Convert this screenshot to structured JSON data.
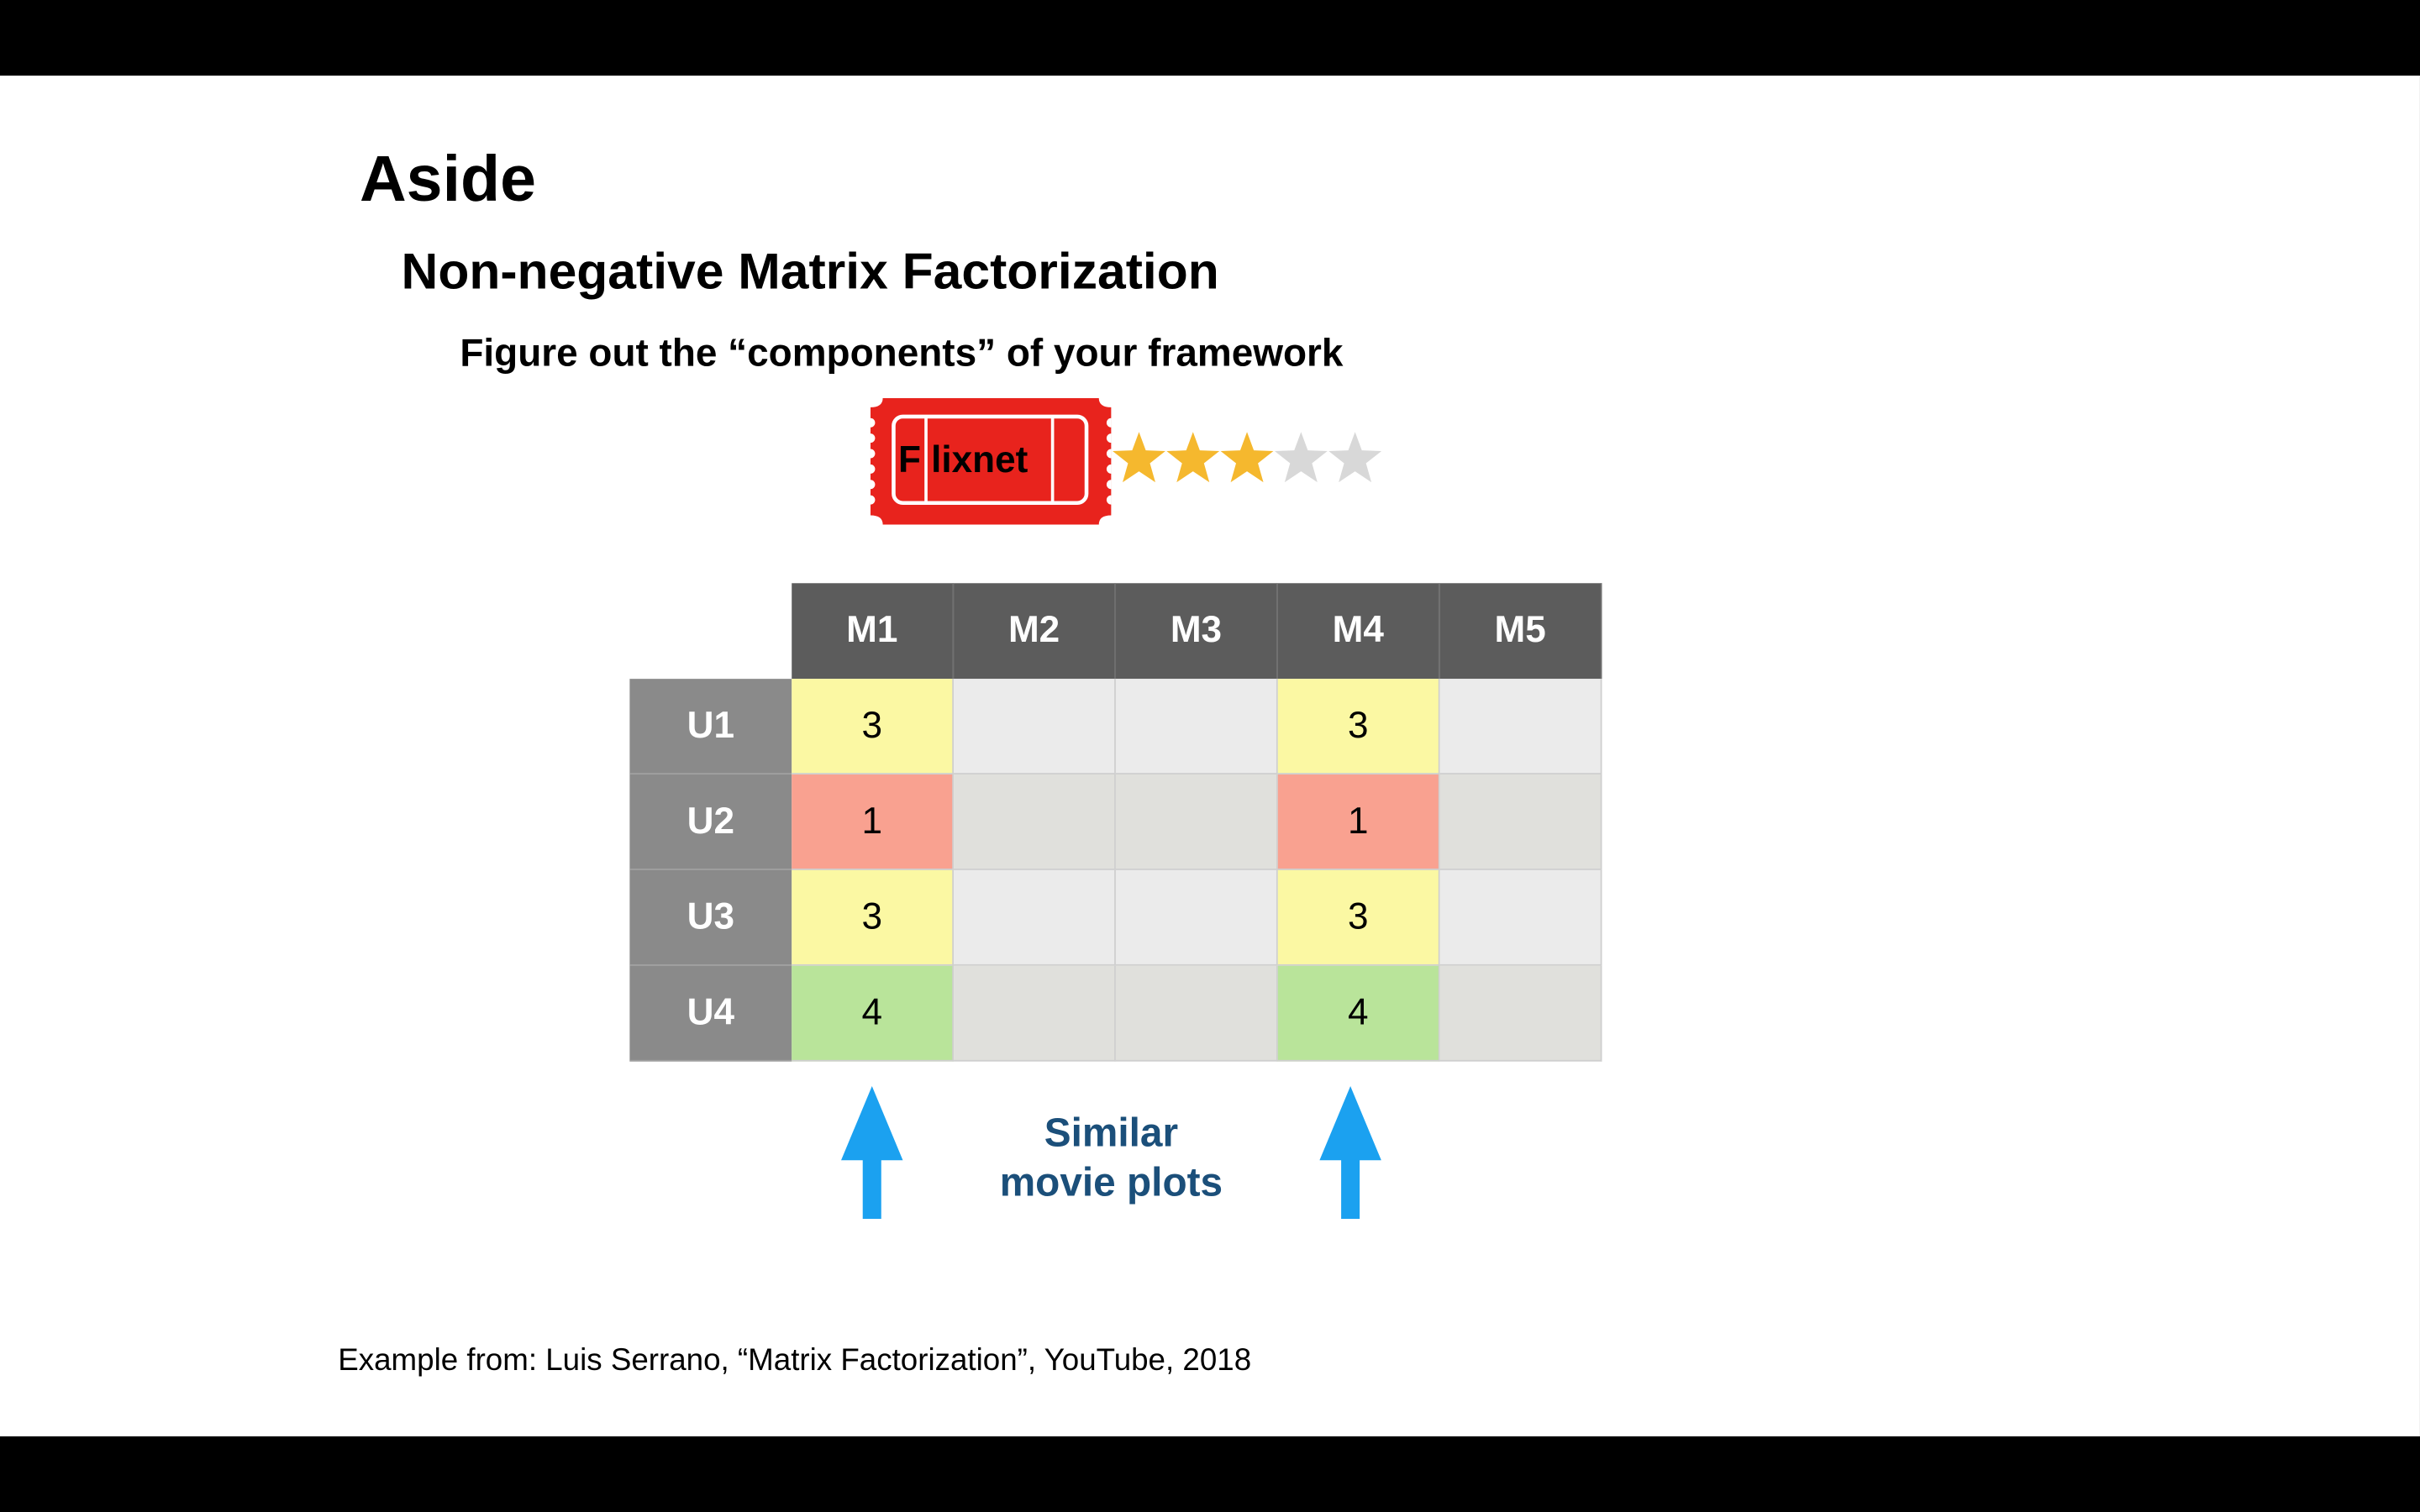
{
  "slide": {
    "title": "Aside",
    "subtitle": "Non-negative Matrix Factorization",
    "description": "Figure out the “components” of your framework",
    "logo_text": "F lixnet",
    "rating": {
      "value": 3,
      "max": 5
    },
    "note": "Similar movie plots",
    "source": "Example from: Luis Serrano, “Matrix Factorization”, YouTube, 2018"
  },
  "matrix": {
    "columns": [
      "M1",
      "M2",
      "M3",
      "M4",
      "M5"
    ],
    "rows": [
      "U1",
      "U2",
      "U3",
      "U4"
    ],
    "values": [
      [
        "3",
        "",
        "",
        "3",
        ""
      ],
      [
        "1",
        "",
        "",
        "1",
        ""
      ],
      [
        "3",
        "",
        "",
        "3",
        ""
      ],
      [
        "4",
        "",
        "",
        "4",
        ""
      ]
    ]
  },
  "colors": {
    "rating_1": "#f9a190",
    "rating_3": "#fbf8a3",
    "rating_4": "#b9e49a",
    "empty_light": "#ebebeb",
    "empty_dark": "#e0e0dc",
    "star_filled": "#f5b82e",
    "star_empty": "#d8d8d8",
    "arrow": "#1ba1f0",
    "logo": "#e8231d",
    "note": "#1b4f7a"
  }
}
